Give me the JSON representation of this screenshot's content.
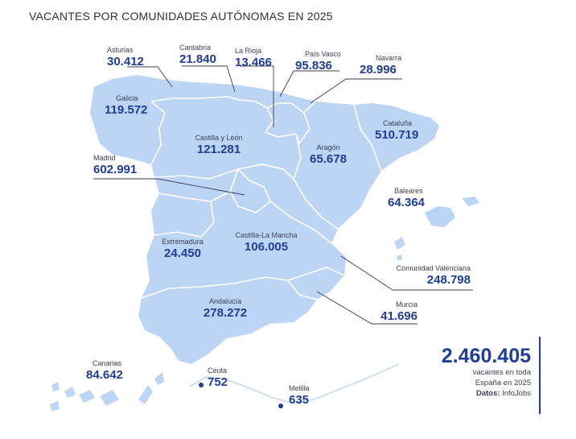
{
  "title": "VACANTES POR COMUNIDADES AUTÓNOMAS EN 2025",
  "regions": {
    "asturias": {
      "name": "Asturias",
      "value": "30.412"
    },
    "cantabria": {
      "name": "Cantabria",
      "value": "21.840"
    },
    "larioja": {
      "name": "La Rioja",
      "value": "13.466"
    },
    "paisvasco": {
      "name": "País Vasco",
      "value": "95.836"
    },
    "navarra": {
      "name": "Navarra",
      "value": "28.996"
    },
    "galicia": {
      "name": "Galicia",
      "value": "119.572"
    },
    "castillaleon": {
      "name": "Castilla y León",
      "value": "121.281"
    },
    "cataluna": {
      "name": "Cataluña",
      "value": "510.719"
    },
    "aragon": {
      "name": "Aragón",
      "value": "65.678"
    },
    "madrid": {
      "name": "Madrid",
      "value": "602.991"
    },
    "baleares": {
      "name": "Baleares",
      "value": "64.364"
    },
    "extremadura": {
      "name": "Extremadura",
      "value": "24.450"
    },
    "castillalamancha": {
      "name": "Castilla-La Mancha",
      "value": "106.005"
    },
    "valenciana": {
      "name": "Comunidad Valenciana",
      "value": "248.798"
    },
    "andalucia": {
      "name": "Andalucía",
      "value": "278.272"
    },
    "murcia": {
      "name": "Murcia",
      "value": "41.696"
    },
    "canarias": {
      "name": "Canarias",
      "value": "84.642"
    },
    "ceuta": {
      "name": "Ceuta",
      "value": "752"
    },
    "melilla": {
      "name": "Melilla",
      "value": "635"
    }
  },
  "total": {
    "value": "2.460.405",
    "caption_line1": "vacantes en toda",
    "caption_line2": "España en 2025",
    "source_label": "Datos:",
    "source_name": "InfoJobs"
  },
  "colors": {
    "land": "#bcd5f5",
    "border": "#ffffff",
    "accent": "#1f3d9a",
    "leader": "#3a3f55"
  }
}
